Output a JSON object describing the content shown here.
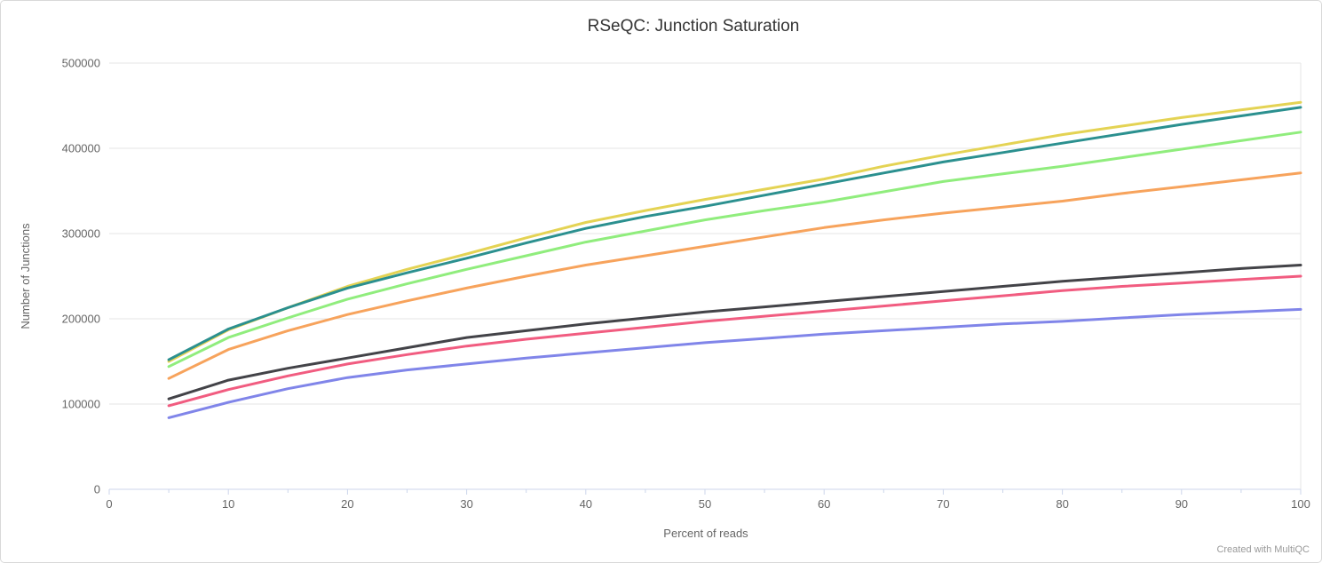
{
  "page": {
    "background_color": "#ffffff",
    "border_color": "#d9d9d9"
  },
  "chart": {
    "credit": "Created with MultiQC"
  },
  "chart_data": {
    "type": "line",
    "title": "RSeQC: Junction Saturation",
    "xlabel": "Percent of reads",
    "ylabel": "Number of Junctions",
    "xlim": [
      0,
      100
    ],
    "ylim": [
      0,
      500000
    ],
    "x_ticks": [
      0,
      10,
      20,
      30,
      40,
      50,
      60,
      70,
      80,
      90,
      100
    ],
    "x_minor_tick_step": 5,
    "y_ticks": [
      0,
      100000,
      200000,
      300000,
      400000,
      500000
    ],
    "grid": "horizontal",
    "legend": "none",
    "axis_line_color": "#ccd6eb",
    "gridline_color": "#e6e6e6",
    "x": [
      5,
      10,
      15,
      20,
      25,
      30,
      35,
      40,
      45,
      50,
      55,
      60,
      65,
      70,
      75,
      80,
      85,
      90,
      95,
      100
    ],
    "series": [
      {
        "name": "series-yellow",
        "color": "#e4d354",
        "values": [
          150000,
          187000,
          213000,
          238000,
          258000,
          276000,
          295000,
          313000,
          327000,
          340000,
          352000,
          364000,
          379000,
          392000,
          404000,
          416000,
          426000,
          436000,
          445000,
          454000
        ]
      },
      {
        "name": "series-teal",
        "color": "#2b908f",
        "values": [
          152000,
          188000,
          213000,
          236000,
          254000,
          271000,
          289000,
          306000,
          320000,
          332000,
          345000,
          358000,
          371000,
          384000,
          395000,
          406000,
          417000,
          428000,
          438000,
          448000
        ]
      },
      {
        "name": "series-green",
        "color": "#90ed7d",
        "values": [
          144000,
          178000,
          201000,
          223000,
          241000,
          258000,
          274000,
          290000,
          303000,
          316000,
          327000,
          337000,
          349000,
          361000,
          370000,
          379000,
          389000,
          399000,
          409000,
          419000
        ]
      },
      {
        "name": "series-orange",
        "color": "#f7a35c",
        "values": [
          130000,
          164000,
          186000,
          205000,
          221000,
          236000,
          250000,
          263000,
          274000,
          285000,
          296000,
          307000,
          316000,
          324000,
          331000,
          338000,
          347000,
          355000,
          363000,
          371000
        ]
      },
      {
        "name": "series-dark",
        "color": "#434348",
        "values": [
          106000,
          128000,
          142000,
          154000,
          166000,
          178000,
          186000,
          194000,
          201000,
          208000,
          214000,
          220000,
          226000,
          232000,
          238000,
          244000,
          249000,
          254000,
          259000,
          263000
        ]
      },
      {
        "name": "series-pink",
        "color": "#f15c80",
        "values": [
          98000,
          117000,
          133000,
          147000,
          158000,
          168000,
          176000,
          183000,
          190000,
          197000,
          203000,
          209000,
          215000,
          221000,
          227000,
          233000,
          238000,
          242000,
          246000,
          250000
        ]
      },
      {
        "name": "series-blue",
        "color": "#8085e9",
        "values": [
          84000,
          102000,
          118000,
          131000,
          140000,
          147000,
          154000,
          160000,
          166000,
          172000,
          177000,
          182000,
          186000,
          190000,
          194000,
          197000,
          201000,
          205000,
          208000,
          211000
        ]
      }
    ]
  }
}
